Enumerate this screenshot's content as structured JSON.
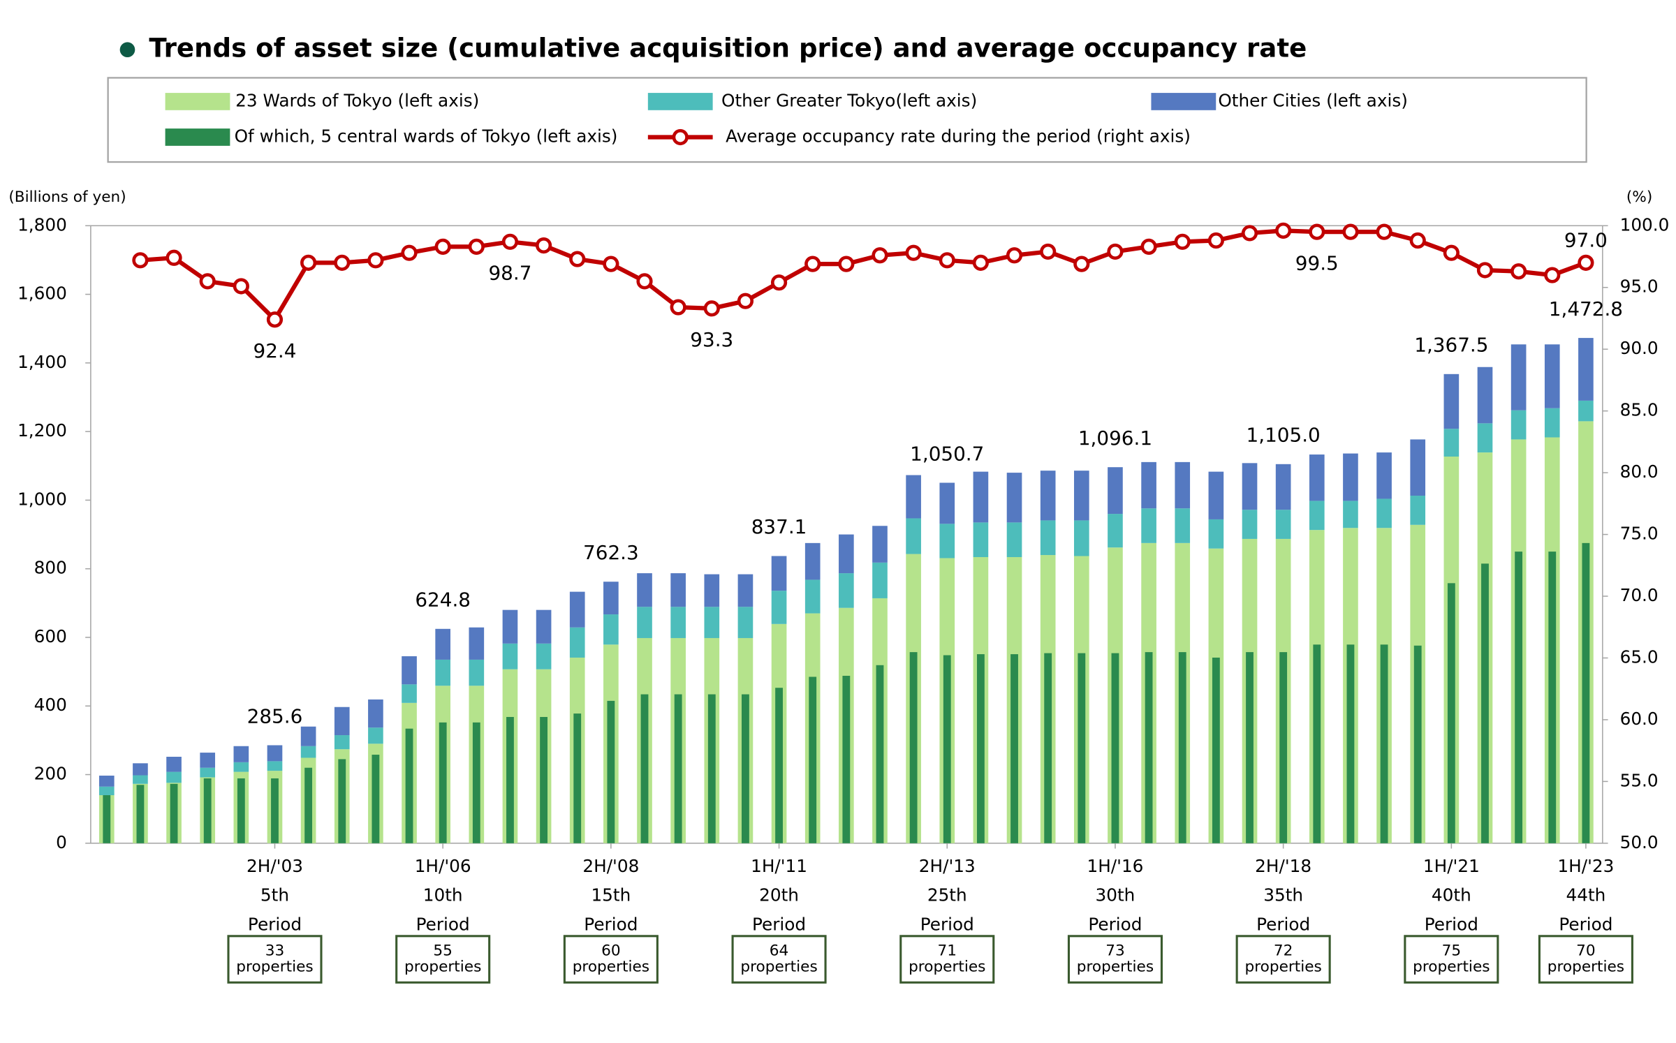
{
  "chart_data": {
    "type": "bar",
    "title": "Trends of asset size (cumulative acquisition price) and average occupancy rate",
    "y_label": "(Billions of yen)",
    "y2_label": "(%)",
    "categories": [
      null,
      null,
      null,
      null,
      null,
      "2H/'03",
      null,
      null,
      null,
      null,
      "1H/'06",
      null,
      null,
      null,
      null,
      "2H/'08",
      null,
      null,
      null,
      null,
      "1H/'11",
      null,
      null,
      null,
      null,
      "2H/'13",
      null,
      null,
      null,
      null,
      "1H/'16",
      null,
      null,
      null,
      null,
      "2H/'18",
      null,
      null,
      null,
      null,
      "1H/'21",
      null,
      null,
      null,
      "1H/'23"
    ],
    "period_numbers": [
      null,
      null,
      null,
      null,
      null,
      "5th",
      null,
      null,
      null,
      null,
      "10th",
      null,
      null,
      null,
      null,
      "15th",
      null,
      null,
      null,
      null,
      "20th",
      null,
      null,
      null,
      null,
      "25th",
      null,
      null,
      null,
      null,
      "30th",
      null,
      null,
      null,
      null,
      "35th",
      null,
      null,
      null,
      null,
      "40th",
      null,
      null,
      null,
      "44th"
    ],
    "period_word": "Period",
    "property_counts": [
      null,
      null,
      null,
      null,
      null,
      33,
      null,
      null,
      null,
      null,
      55,
      null,
      null,
      null,
      null,
      60,
      null,
      null,
      null,
      null,
      64,
      null,
      null,
      null,
      null,
      71,
      null,
      null,
      null,
      null,
      73,
      null,
      null,
      null,
      null,
      72,
      null,
      null,
      null,
      null,
      75,
      null,
      null,
      null,
      70
    ],
    "property_unit": "properties",
    "ylim": [
      0,
      1800
    ],
    "yticks": [
      0,
      200,
      400,
      600,
      800,
      {
        "value": 1000,
        "label": "1,000"
      },
      {
        "value": 1200,
        "label": "1,200"
      },
      {
        "value": 1400,
        "label": "1,400"
      },
      {
        "value": 1600,
        "label": "1,600"
      },
      {
        "value": 1800,
        "label": "1,800"
      }
    ],
    "y2lim": [
      50,
      100
    ],
    "y2ticks": [
      {
        "value": 50,
        "label": "50.0"
      },
      {
        "value": 55,
        "label": "55.0"
      },
      {
        "value": 60,
        "label": "60.0"
      },
      {
        "value": 65,
        "label": "65.0"
      },
      {
        "value": 70,
        "label": "70.0"
      },
      {
        "value": 75,
        "label": "75.0"
      },
      {
        "value": 80,
        "label": "80.0"
      },
      {
        "value": 85,
        "label": "85.0"
      },
      {
        "value": 90,
        "label": "90.0"
      },
      {
        "value": 95,
        "label": "95.0"
      },
      {
        "value": 100,
        "label": "100.0"
      }
    ],
    "series": [
      {
        "name": "23 Wards of Tokyo (left axis)",
        "kind": "stack",
        "color": "#b5e38c",
        "values": [
          140,
          173,
          176,
          192,
          208,
          211,
          249,
          274,
          290,
          409,
          459,
          459,
          507,
          507,
          541,
          579,
          598,
          598,
          598,
          598,
          639,
          670,
          686,
          714,
          843,
          831,
          834,
          834,
          840,
          837,
          862,
          875,
          875,
          859,
          887,
          887,
          913,
          919,
          919,
          928,
          1127,
          1139,
          1177,
          1183,
          1230
        ]
      },
      {
        "name": "Other Greater Tokyo(left axis)",
        "kind": "stack",
        "color": "#4dbdbb",
        "values": [
          25,
          25,
          32,
          28,
          28,
          28,
          34,
          41,
          47,
          54,
          76,
          76,
          75,
          75,
          88,
          88,
          91,
          91,
          91,
          91,
          97,
          98,
          101,
          104,
          104,
          100,
          101,
          101,
          101,
          104,
          98,
          101,
          101,
          85,
          85,
          85,
          85,
          79,
          85,
          85,
          81,
          85,
          85,
          85,
          60
        ]
      },
      {
        "name": "Other Cities (left axis)",
        "kind": "stack",
        "color": "#5579c1",
        "values": [
          32,
          35,
          44,
          44,
          47,
          46.6,
          57,
          82,
          82,
          82,
          89.8,
          94,
          98,
          98,
          104,
          95.3,
          98,
          98,
          95,
          95,
          101.1,
          107,
          113,
          107,
          126,
          119.7,
          148,
          145,
          145,
          145,
          136.1,
          135,
          135,
          139,
          136,
          133,
          135,
          138,
          135,
          164,
          159.5,
          164,
          192,
          186,
          182.8
        ]
      },
      {
        "name": "Of which, 5 central wards of Tokyo (left axis)",
        "kind": "overlay",
        "color": "#2a8a4e",
        "values": [
          140,
          170,
          173,
          189,
          189,
          189,
          220,
          245,
          258,
          334,
          352,
          352,
          368,
          368,
          378,
          415,
          434,
          434,
          434,
          434,
          453,
          485,
          488,
          519,
          557,
          548,
          551,
          551,
          554,
          554,
          554,
          557,
          557,
          541,
          557,
          557,
          579,
          579,
          579,
          576,
          758,
          815,
          850,
          850,
          875
        ]
      },
      {
        "name": "Average occupancy rate during the period (right axis)",
        "kind": "line",
        "axis": "y2",
        "color": "#c00000",
        "values": [
          null,
          97.2,
          97.4,
          95.5,
          95.1,
          92.4,
          97.0,
          97.0,
          97.2,
          97.8,
          98.3,
          98.3,
          98.7,
          98.4,
          97.3,
          96.9,
          95.5,
          93.4,
          93.3,
          93.9,
          95.4,
          96.9,
          96.9,
          97.6,
          97.8,
          97.2,
          97.0,
          97.6,
          97.9,
          96.9,
          97.9,
          98.3,
          98.7,
          98.8,
          99.4,
          99.6,
          99.5,
          99.5,
          99.5,
          98.8,
          97.8,
          96.4,
          96.3,
          96.0,
          97.0
        ],
        "value_labels": [
          null,
          null,
          null,
          null,
          null,
          "92.4",
          null,
          null,
          null,
          null,
          null,
          null,
          "98.7",
          null,
          null,
          null,
          null,
          null,
          "93.3",
          null,
          null,
          null,
          null,
          null,
          null,
          null,
          null,
          null,
          null,
          null,
          null,
          null,
          null,
          null,
          null,
          null,
          "99.5",
          null,
          null,
          null,
          null,
          null,
          null,
          null,
          "97.0"
        ]
      }
    ],
    "totals": [
      null,
      null,
      null,
      null,
      null,
      285.6,
      null,
      null,
      null,
      null,
      624.8,
      null,
      null,
      null,
      null,
      762.3,
      null,
      null,
      null,
      null,
      837.1,
      null,
      null,
      null,
      null,
      1050.7,
      null,
      null,
      null,
      null,
      1096.1,
      null,
      null,
      null,
      null,
      1105.0,
      null,
      null,
      null,
      null,
      1367.5,
      null,
      null,
      null,
      1472.8
    ],
    "total_value_labels": [
      null,
      null,
      null,
      null,
      null,
      "285.6",
      null,
      null,
      null,
      null,
      "624.8",
      null,
      null,
      null,
      null,
      "762.3",
      null,
      null,
      null,
      null,
      "837.1",
      null,
      null,
      null,
      null,
      "1,050.7",
      null,
      null,
      null,
      null,
      "1,096.1",
      null,
      null,
      null,
      null,
      "1,105.0",
      null,
      null,
      null,
      null,
      "1,367.5",
      null,
      null,
      null,
      "1,472.8"
    ]
  }
}
